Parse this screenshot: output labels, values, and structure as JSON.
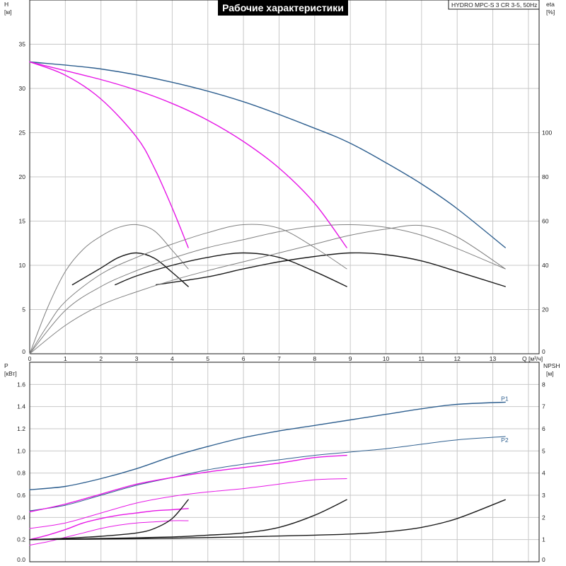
{
  "title": "Рабочие характеристики",
  "model": "HYDRO MPC-S 3 CR 3-5, 50Hz",
  "colors": {
    "blue": "#2e5f8f",
    "magenta": "#e617e6",
    "black": "#1a1a1a",
    "gray": "#808080",
    "grid": "#c8c8c8"
  },
  "chart_data": [
    {
      "type": "line",
      "panel": "head-efficiency",
      "xlabel": "Q [м³/ч]",
      "ylabel_left": "H",
      "ylabel_left_unit": "[м]",
      "ylabel_right": "eta",
      "ylabel_right_unit": "[%]",
      "xlim": [
        0,
        14.3
      ],
      "ylim_left": [
        0,
        40
      ],
      "ylim_right": [
        0,
        160
      ],
      "x_ticks": [
        "0",
        "1",
        "2",
        "3",
        "4",
        "5",
        "6",
        "7",
        "8",
        "9",
        "10",
        "11",
        "12",
        "13"
      ],
      "y_left_ticks": [
        "0",
        "5",
        "10",
        "15",
        "20",
        "25",
        "30",
        "35"
      ],
      "y_right_ticks": [
        "0",
        "20",
        "40",
        "60",
        "80",
        "100"
      ],
      "grid": true,
      "series": [
        {
          "axis": "left",
          "color": "blue",
          "width": 1.4,
          "points": [
            [
              0,
              33
            ],
            [
              2,
              32.2
            ],
            [
              4,
              30.7
            ],
            [
              6,
              28.5
            ],
            [
              8,
              25.5
            ],
            [
              9,
              23.8
            ],
            [
              10,
              21.6
            ],
            [
              11,
              19.2
            ],
            [
              12,
              16.4
            ],
            [
              13.35,
              12
            ]
          ]
        },
        {
          "axis": "left",
          "color": "magenta",
          "width": 1.4,
          "points": [
            [
              0,
              33
            ],
            [
              1,
              31.5
            ],
            [
              2,
              28.8
            ],
            [
              3,
              24.5
            ],
            [
              3.5,
              21
            ],
            [
              4,
              16.5
            ],
            [
              4.45,
              12
            ]
          ]
        },
        {
          "axis": "left",
          "color": "magenta",
          "width": 1.4,
          "points": [
            [
              0,
              33
            ],
            [
              2,
              31
            ],
            [
              3,
              29.8
            ],
            [
              4,
              28.3
            ],
            [
              5,
              26.4
            ],
            [
              6,
              24
            ],
            [
              7,
              21
            ],
            [
              8,
              17
            ],
            [
              8.9,
              12
            ]
          ]
        },
        {
          "axis": "left",
          "color": "black",
          "width": 1.4,
          "points": [
            [
              1.2,
              7.8
            ],
            [
              2,
              9.7
            ],
            [
              2.5,
              10.9
            ],
            [
              3,
              11.4
            ],
            [
              3.5,
              10.8
            ],
            [
              4,
              9.2
            ],
            [
              4.45,
              7.6
            ]
          ]
        },
        {
          "axis": "left",
          "color": "black",
          "width": 1.4,
          "points": [
            [
              2.4,
              7.8
            ],
            [
              3,
              8.8
            ],
            [
              4,
              10
            ],
            [
              5,
              10.9
            ],
            [
              6,
              11.4
            ],
            [
              7,
              10.9
            ],
            [
              8,
              9.3
            ],
            [
              8.9,
              7.6
            ]
          ]
        },
        {
          "axis": "left",
          "color": "black",
          "width": 1.4,
          "points": [
            [
              3.55,
              7.8
            ],
            [
              5,
              8.7
            ],
            [
              6,
              9.6
            ],
            [
              7,
              10.4
            ],
            [
              8,
              11
            ],
            [
              9,
              11.4
            ],
            [
              10,
              11.2
            ],
            [
              11,
              10.5
            ],
            [
              12,
              9.3
            ],
            [
              13.35,
              7.6
            ]
          ]
        },
        {
          "axis": "left",
          "color": "gray",
          "width": 1,
          "points": [
            [
              0,
              0
            ],
            [
              0.5,
              5.2
            ],
            [
              1,
              9.3
            ],
            [
              1.5,
              11.8
            ],
            [
              2,
              13.3
            ],
            [
              2.5,
              14.3
            ],
            [
              3,
              14.6
            ],
            [
              3.5,
              13.9
            ],
            [
              4,
              11.7
            ],
            [
              4.45,
              9.6
            ]
          ]
        },
        {
          "axis": "left",
          "color": "gray",
          "width": 1,
          "points": [
            [
              0,
              0
            ],
            [
              0.5,
              3.2
            ],
            [
              1,
              5.9
            ],
            [
              2,
              9
            ],
            [
              3,
              10.9
            ],
            [
              4,
              12.4
            ],
            [
              5,
              13.7
            ],
            [
              6,
              14.6
            ],
            [
              7,
              14.2
            ],
            [
              8,
              12
            ],
            [
              8.9,
              9.6
            ]
          ]
        },
        {
          "axis": "left",
          "color": "gray",
          "width": 1,
          "points": [
            [
              0,
              0
            ],
            [
              1,
              3.2
            ],
            [
              2,
              5.5
            ],
            [
              3,
              7
            ],
            [
              4,
              8.3
            ],
            [
              5,
              9.4
            ],
            [
              6,
              10.4
            ],
            [
              7,
              11.4
            ],
            [
              8,
              12.4
            ],
            [
              9,
              13.4
            ],
            [
              10,
              14.1
            ],
            [
              11,
              14.5
            ],
            [
              12,
              13.2
            ],
            [
              13.35,
              9.6
            ]
          ]
        },
        {
          "axis": "left",
          "color": "gray",
          "width": 1,
          "points": [
            [
              0,
              0
            ],
            [
              1,
              4.9
            ],
            [
              2,
              7.6
            ],
            [
              3,
              9.4
            ],
            [
              4,
              10.8
            ],
            [
              5,
              12
            ],
            [
              6,
              12.9
            ],
            [
              7,
              13.8
            ],
            [
              8,
              14.4
            ],
            [
              9,
              14.6
            ],
            [
              10,
              14.3
            ],
            [
              11,
              13.4
            ],
            [
              12,
              11.9
            ],
            [
              13.35,
              9.6
            ]
          ]
        }
      ]
    },
    {
      "type": "line",
      "panel": "power-npsh",
      "ylabel_left": "P",
      "ylabel_left_unit": "[кВт]",
      "ylabel_right": "NPSH",
      "ylabel_right_unit": "[м]",
      "xlim": [
        0,
        14.3
      ],
      "ylim_left": [
        0,
        1.8
      ],
      "ylim_right": [
        0,
        9
      ],
      "y_left_ticks": [
        "0.0",
        "0.2",
        "0.4",
        "0.6",
        "0.8",
        "1.0",
        "1.2",
        "1.4",
        "1.6"
      ],
      "y_right_ticks": [
        "0",
        "1",
        "2",
        "3",
        "4",
        "5",
        "6",
        "7",
        "8"
      ],
      "grid": true,
      "series": [
        {
          "name": "P1",
          "axis": "left",
          "color": "blue",
          "width": 1.4,
          "label": "P1",
          "points": [
            [
              0,
              0.65
            ],
            [
              1,
              0.68
            ],
            [
              2,
              0.75
            ],
            [
              3,
              0.84
            ],
            [
              4,
              0.95
            ],
            [
              5,
              1.04
            ],
            [
              6,
              1.12
            ],
            [
              7,
              1.18
            ],
            [
              8,
              1.23
            ],
            [
              9,
              1.28
            ],
            [
              10,
              1.33
            ],
            [
              11,
              1.38
            ],
            [
              12,
              1.42
            ],
            [
              13.35,
              1.44
            ]
          ]
        },
        {
          "name": "P2",
          "axis": "left",
          "color": "blue",
          "width": 1,
          "label": "P2",
          "points": [
            [
              0,
              0.46
            ],
            [
              1,
              0.51
            ],
            [
              2,
              0.6
            ],
            [
              3,
              0.69
            ],
            [
              4,
              0.76
            ],
            [
              5,
              0.83
            ],
            [
              6,
              0.88
            ],
            [
              7,
              0.92
            ],
            [
              8,
              0.96
            ],
            [
              9,
              0.99
            ],
            [
              10,
              1.02
            ],
            [
              11,
              1.06
            ],
            [
              12,
              1.1
            ],
            [
              13.35,
              1.13
            ]
          ]
        },
        {
          "axis": "left",
          "color": "magenta",
          "width": 1.4,
          "points": [
            [
              0,
              0.45
            ],
            [
              1,
              0.52
            ],
            [
              2,
              0.61
            ],
            [
              3,
              0.7
            ],
            [
              4,
              0.76
            ],
            [
              5,
              0.81
            ],
            [
              6,
              0.85
            ],
            [
              7,
              0.89
            ],
            [
              8,
              0.94
            ],
            [
              8.9,
              0.96
            ]
          ]
        },
        {
          "axis": "left",
          "color": "magenta",
          "width": 1,
          "points": [
            [
              0,
              0.3
            ],
            [
              1,
              0.35
            ],
            [
              2,
              0.44
            ],
            [
              3,
              0.53
            ],
            [
              4,
              0.59
            ],
            [
              5,
              0.63
            ],
            [
              6,
              0.66
            ],
            [
              7,
              0.7
            ],
            [
              8,
              0.74
            ],
            [
              8.9,
              0.75
            ]
          ]
        },
        {
          "axis": "left",
          "color": "magenta",
          "width": 1.4,
          "points": [
            [
              0,
              0.2
            ],
            [
              0.5,
              0.24
            ],
            [
              1,
              0.29
            ],
            [
              1.5,
              0.35
            ],
            [
              2,
              0.39
            ],
            [
              2.5,
              0.42
            ],
            [
              3,
              0.44
            ],
            [
              3.5,
              0.46
            ],
            [
              4,
              0.47
            ],
            [
              4.45,
              0.48
            ]
          ]
        },
        {
          "axis": "left",
          "color": "magenta",
          "width": 1,
          "points": [
            [
              0,
              0.15
            ],
            [
              0.5,
              0.18
            ],
            [
              1,
              0.22
            ],
            [
              1.5,
              0.26
            ],
            [
              2,
              0.3
            ],
            [
              2.5,
              0.33
            ],
            [
              3,
              0.35
            ],
            [
              3.5,
              0.36
            ],
            [
              4,
              0.37
            ],
            [
              4.45,
              0.37
            ]
          ]
        },
        {
          "axis": "right",
          "color": "black",
          "width": 1.4,
          "points": [
            [
              0,
              1
            ],
            [
              1,
              1.06
            ],
            [
              2,
              1.15
            ],
            [
              3,
              1.3
            ],
            [
              3.5,
              1.5
            ],
            [
              4,
              1.95
            ],
            [
              4.45,
              2.8
            ]
          ]
        },
        {
          "axis": "right",
          "color": "black",
          "width": 1.4,
          "points": [
            [
              0,
              1
            ],
            [
              2,
              1.05
            ],
            [
              4,
              1.12
            ],
            [
              5,
              1.2
            ],
            [
              6,
              1.3
            ],
            [
              7,
              1.55
            ],
            [
              8,
              2.1
            ],
            [
              8.9,
              2.8
            ]
          ]
        },
        {
          "axis": "right",
          "color": "black",
          "width": 1.4,
          "points": [
            [
              0,
              1
            ],
            [
              3,
              1.04
            ],
            [
              6,
              1.12
            ],
            [
              8,
              1.2
            ],
            [
              9,
              1.25
            ],
            [
              10,
              1.35
            ],
            [
              11,
              1.55
            ],
            [
              12,
              1.95
            ],
            [
              13.35,
              2.8
            ]
          ]
        }
      ]
    }
  ]
}
